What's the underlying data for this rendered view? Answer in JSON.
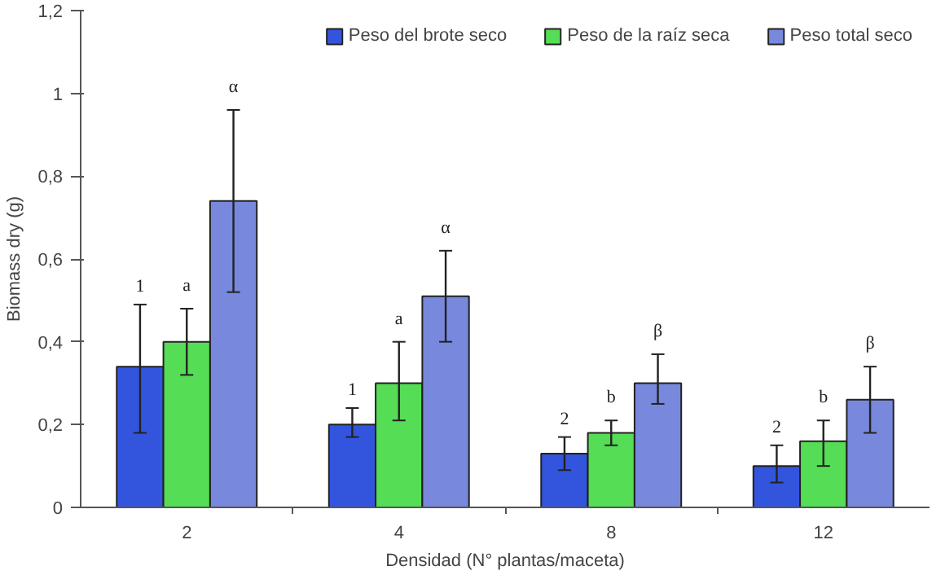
{
  "chart_data": {
    "type": "bar",
    "xlabel": "Densidad (N° plantas/maceta)",
    "ylabel": "Biomass dry (g)",
    "categories": [
      "2",
      "4",
      "8",
      "12"
    ],
    "series": [
      {
        "name": "Peso del brote seco",
        "color": "#3355dd",
        "values": [
          0.34,
          0.2,
          0.13,
          0.1
        ],
        "errors": [
          [
            0.18,
            0.49
          ],
          [
            0.17,
            0.24
          ],
          [
            0.09,
            0.17
          ],
          [
            0.06,
            0.15
          ]
        ]
      },
      {
        "name": "Peso de la raíz seca",
        "color": "#55dd55",
        "values": [
          0.4,
          0.3,
          0.18,
          0.16
        ],
        "errors": [
          [
            0.32,
            0.48
          ],
          [
            0.21,
            0.4
          ],
          [
            0.15,
            0.21
          ],
          [
            0.1,
            0.21
          ]
        ]
      },
      {
        "name": "Peso total seco",
        "color": "#7788dd",
        "values": [
          0.74,
          0.51,
          0.3,
          0.26
        ],
        "errors": [
          [
            0.52,
            0.96
          ],
          [
            0.4,
            0.62
          ],
          [
            0.25,
            0.37
          ],
          [
            0.18,
            0.34
          ]
        ]
      }
    ],
    "annotations": [
      "1",
      "a",
      "α",
      "1",
      "a",
      "α",
      "2",
      "b",
      "β",
      "2",
      "b",
      "β"
    ],
    "ylim": [
      0,
      1.2
    ],
    "yticks": [
      0,
      {
        "value": 0.2,
        "label": "0,2"
      },
      {
        "value": 0.4,
        "label": "0,4"
      },
      {
        "value": 0.6,
        "label": "0,6"
      },
      {
        "value": 0.8,
        "label": "0,8"
      },
      1,
      {
        "value": 1.2,
        "label": "1,2"
      }
    ],
    "grid": false,
    "legend": "top right"
  }
}
